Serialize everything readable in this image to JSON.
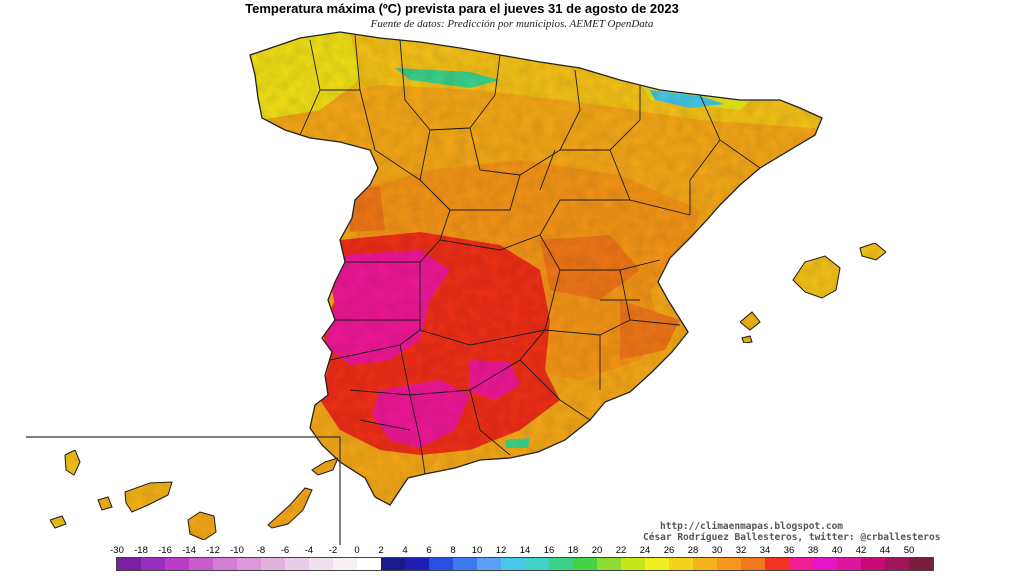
{
  "title": "Temperatura máxima (ºC) prevista para el jueves 31 de agosto de 2023",
  "subtitle": "Fuente de datos: Predicción por municipios. AEMET OpenData",
  "credits": {
    "url": "http://climaenmapas.blogspot.com",
    "author": "César Rodríguez Ballesteros, twitter: @crballesteros"
  },
  "legend": {
    "tick_labels": [
      "-30",
      "-18",
      "-16",
      "-14",
      "-12",
      "-10",
      "-8",
      "-6",
      "-4",
      "-2",
      "0",
      "2",
      "4",
      "6",
      "8",
      "10",
      "12",
      "14",
      "16",
      "18",
      "20",
      "22",
      "24",
      "26",
      "28",
      "30",
      "32",
      "34",
      "36",
      "38",
      "40",
      "42",
      "44",
      "50"
    ],
    "colors": [
      "#7a1fa0",
      "#9a2cc0",
      "#b83cc8",
      "#c85ccf",
      "#d47dd5",
      "#dc98d8",
      "#e2b3de",
      "#e9cce6",
      "#eee0ec",
      "#f6f0f5",
      "#ffffff",
      "#1a1a8a",
      "#1e1eb4",
      "#2850e0",
      "#3c78f0",
      "#5aa0f5",
      "#46c8e6",
      "#3ed2c8",
      "#3cd28c",
      "#46d246",
      "#8cdc32",
      "#c8e61e",
      "#f0f01e",
      "#f5d21e",
      "#f5b41e",
      "#f5961e",
      "#f0781e",
      "#f0321e",
      "#f01e96",
      "#e614c8",
      "#dc14a0",
      "#c80a78",
      "#a0145a",
      "#7a1e3c"
    ]
  },
  "regions": {
    "peninsula": "España peninsular",
    "baleares": "Islas Baleares",
    "canarias": "Islas Canarias"
  }
}
